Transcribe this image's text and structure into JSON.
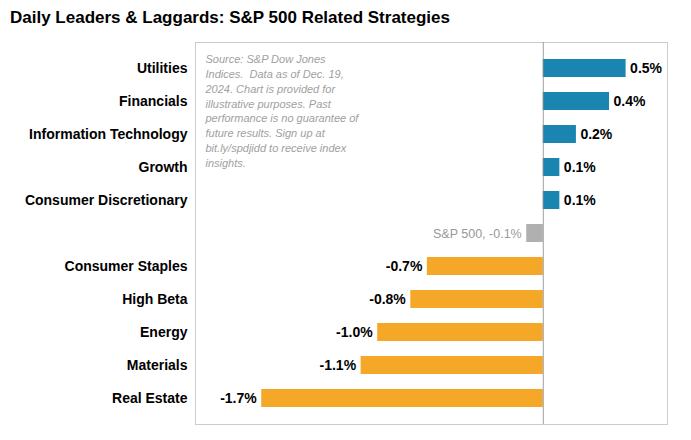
{
  "chart_data": {
    "type": "bar",
    "orientation": "horizontal",
    "title": "Daily Leaders & Laggards: S&P 500 Related Strategies",
    "categories": [
      "Real Estate",
      "Materials",
      "Energy",
      "High Beta",
      "Consumer Staples",
      null,
      "Consumer Discretionary",
      "Growth",
      "Information Technology",
      "Financials",
      "Utilities"
    ],
    "values": [
      -1.7,
      -1.1,
      -1.0,
      -0.8,
      -0.7,
      -0.1,
      0.1,
      0.1,
      0.2,
      0.4,
      0.5
    ],
    "value_labels": [
      "-1.7%",
      "-1.1%",
      "-1.0%",
      "-0.8%",
      "-0.7%",
      "S&P 500, -0.1%",
      "0.1%",
      "0.1%",
      "0.2%",
      "0.4%",
      "0.5%"
    ],
    "colors": [
      "#f5a828",
      "#f5a828",
      "#f5a828",
      "#f5a828",
      "#f5a828",
      "#b0b0b0",
      "#1a85b0",
      "#1a85b0",
      "#1a85b0",
      "#1a85b0",
      "#1a85b0"
    ],
    "xlim": [
      -2.1,
      0.75
    ],
    "data_labels": true,
    "tick_labels": "y",
    "grid": false,
    "annotation": "Source: S&P Dow Jones\nIndices.  Data as of Dec. 19,\n2024. Chart is provided for\nillustrative purposes. Past\nperformance is no guarantee of\nfuture results. Sign up at\nbit.ly/spdjidd to receive index\ninsights."
  }
}
